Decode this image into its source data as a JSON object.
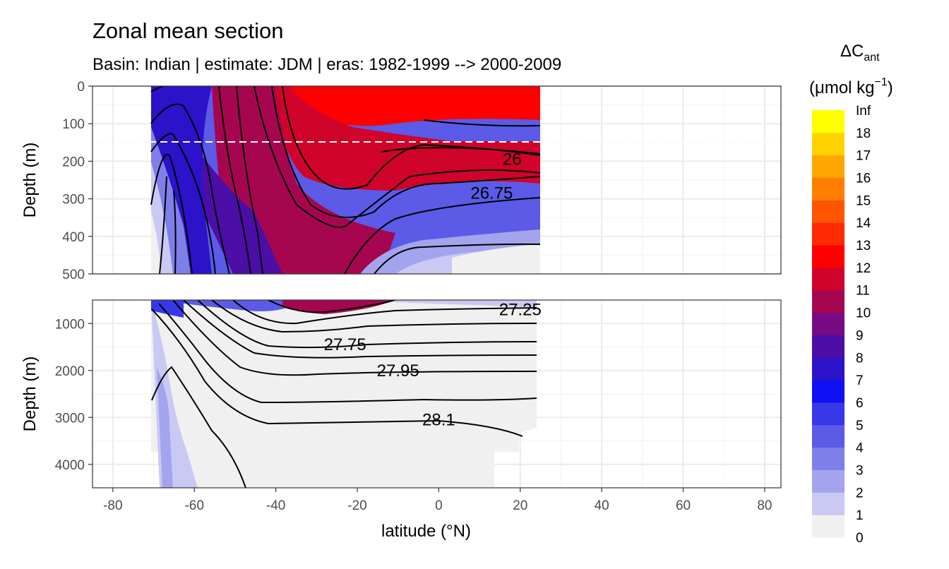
{
  "chart_data": {
    "type": "contour",
    "title": "Zonal mean section",
    "subtitle": "Basin: Indian | estimate: JDM  | eras: 1982-1999 --> 2000-2009",
    "xlabel": "latitude (°N)",
    "x_ticks": [
      -80,
      -60,
      -40,
      -20,
      0,
      20,
      40,
      60,
      80
    ],
    "xlim": [
      -85,
      84
    ],
    "data_extent_lat": [
      -70,
      25
    ],
    "panels": [
      {
        "name": "upper",
        "ylabel": "Depth (m)",
        "ylim": [
          0,
          500
        ],
        "y_ticks": [
          0,
          100,
          200,
          300,
          400,
          500
        ],
        "reference_line_depth": 150
      },
      {
        "name": "lower",
        "ylabel": "Depth (m)",
        "ylim": [
          500,
          4500
        ],
        "y_ticks": [
          1000,
          2000,
          3000,
          4000
        ]
      }
    ],
    "legend": {
      "title_main": "ΔC",
      "title_sub": "ant",
      "unit_prefix": "(μmol kg",
      "unit_sup": "−1",
      "unit_suffix": ")",
      "labels": [
        "0",
        "1",
        "2",
        "3",
        "4",
        "5",
        "6",
        "7",
        "8",
        "9",
        "10",
        "11",
        "12",
        "13",
        "14",
        "15",
        "16",
        "17",
        "18",
        "Inf"
      ],
      "colors": [
        "#f0f0f0",
        "#c9c9f3",
        "#a4a4ee",
        "#7f7fea",
        "#5b5be7",
        "#3838e9",
        "#1010f5",
        "#2c12c8",
        "#4c0ea6",
        "#780b83",
        "#a6064f",
        "#d0032b",
        "#ff0000",
        "#ff2a00",
        "#ff5400",
        "#ff7d00",
        "#ffa600",
        "#ffd200",
        "#ffff00"
      ]
    },
    "isopycnal_labels": [
      {
        "label": "26",
        "lat": 18,
        "depth": 195
      },
      {
        "label": "26.75",
        "lat": 13,
        "depth": 285
      },
      {
        "label": "27.25",
        "lat": 20,
        "depth": 700
      },
      {
        "label": "27.75",
        "lat": -23,
        "depth": 1450
      },
      {
        "label": "27.95",
        "lat": -10,
        "depth": 2000
      },
      {
        "label": "28.1",
        "lat": 0,
        "depth": 3050
      }
    ]
  }
}
